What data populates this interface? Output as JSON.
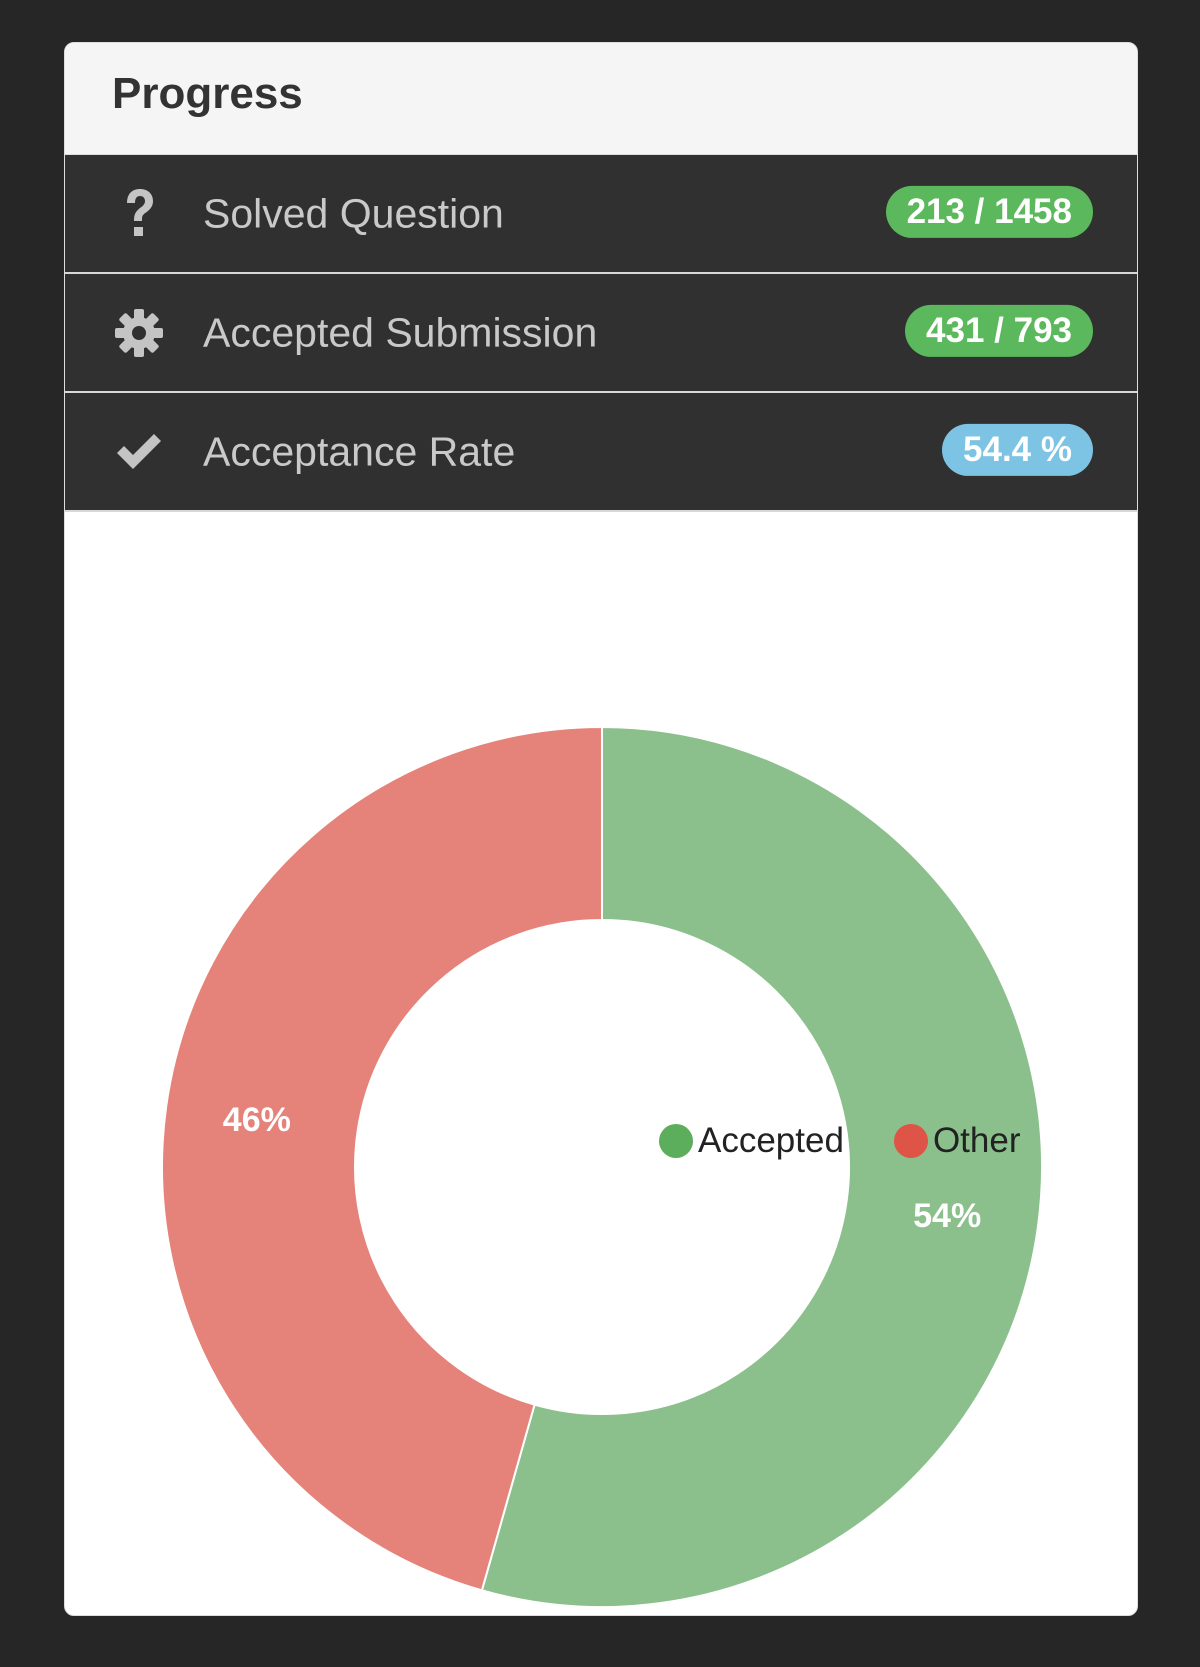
{
  "panel": {
    "title": "Progress"
  },
  "stats": [
    {
      "icon": "question-icon",
      "label": "Solved Question",
      "badge": "213 / 1458",
      "badge_color": "#5cb85c"
    },
    {
      "icon": "gear-icon",
      "label": "Accepted Submission",
      "badge": "431 / 793",
      "badge_color": "#5cb85c"
    },
    {
      "icon": "check-icon",
      "label": "Acceptance Rate",
      "badge": "54.4 %",
      "badge_color": "#7dc3e4"
    }
  ],
  "colors": {
    "background": "#262626",
    "row_background": "#303030",
    "accepted": "#8bc08c",
    "other": "#e5837a",
    "legend_accepted": "#5cad5c",
    "legend_other": "#de5446"
  },
  "chart_data": {
    "type": "pie",
    "donut": true,
    "legend_position": "top-right",
    "categories": [
      "Accepted",
      "Other"
    ],
    "values": [
      54.4,
      45.6
    ],
    "labels": [
      "54%",
      "46%"
    ]
  }
}
